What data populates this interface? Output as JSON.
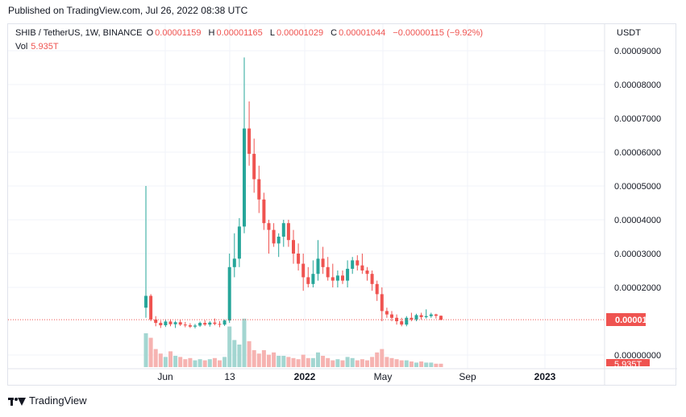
{
  "header": {
    "published": "Published on TradingView.com, Jul 26, 2022 08:38 UTC"
  },
  "legend": {
    "symbol": "SHIB / TetherUS, 1W, BINANCE",
    "o_label": "O",
    "o_value": "0.00001159",
    "h_label": "H",
    "h_value": "0.00001165",
    "l_label": "L",
    "l_value": "0.00001029",
    "c_label": "C",
    "c_value": "0.00001044",
    "change": "−0.00000115 (−9.92%)",
    "vol_label": "Vol",
    "vol_value": "5.935T"
  },
  "currency": "USDT",
  "footer": {
    "brand": "TradingView"
  },
  "colors": {
    "up": "#26a69a",
    "down": "#ef5350",
    "up_vol": "#a3d6d1",
    "down_vol": "#f6b3b1"
  },
  "chart_data": {
    "type": "candlestick",
    "y_ticks": [
      "0.00009000",
      "0.00008000",
      "0.00007000",
      "0.00006000",
      "0.00005000",
      "0.00004000",
      "0.00003000",
      "0.00002000",
      "0.00000000"
    ],
    "ylim": [
      0,
      9e-05
    ],
    "x_ticks": [
      "Jun",
      "13",
      "2022",
      "May",
      "Sep",
      "2023"
    ],
    "last_price": "0.00001044",
    "last_volume": "5.935T",
    "candles": [
      [
        1.4e-05,
        5e-05,
        1.1e-05,
        1.75e-05,
        3.0
      ],
      [
        1.75e-05,
        1.8e-05,
        1e-05,
        1.05e-05,
        2.6
      ],
      [
        1.05e-05,
        1.15e-05,
        8.5e-06,
        9.5e-06,
        1.6
      ],
      [
        9.5e-06,
        1.02e-05,
        8e-06,
        8.8e-06,
        1.2
      ],
      [
        8.8e-06,
        1.05e-05,
        8.3e-06,
        9.9e-06,
        0.9
      ],
      [
        9.9e-06,
        1.06e-05,
        8.5e-06,
        9.1e-06,
        1.4
      ],
      [
        9.1e-06,
        1.01e-05,
        8e-06,
        9.7e-06,
        1.0
      ],
      [
        9.7e-06,
        1.04e-05,
        8.6e-06,
        9e-06,
        0.9
      ],
      [
        9e-06,
        9.8e-06,
        8.2e-06,
        8.8e-06,
        0.7
      ],
      [
        8.8e-06,
        9.4e-06,
        8e-06,
        8.4e-06,
        0.8
      ],
      [
        8.4e-06,
        9.2e-06,
        7.9e-06,
        8.7e-06,
        0.6
      ],
      [
        8.7e-06,
        9.9e-06,
        8.3e-06,
        9.5e-06,
        0.7
      ],
      [
        9.5e-06,
        1.03e-05,
        8.6e-06,
        9e-06,
        0.6
      ],
      [
        9e-06,
        1e-05,
        8.4e-06,
        9.6e-06,
        0.7
      ],
      [
        9.6e-06,
        1.08e-05,
        8.8e-06,
        9.2e-06,
        0.8
      ],
      [
        9.2e-06,
        1e-05,
        8.2e-06,
        9e-06,
        0.6
      ],
      [
        9e-06,
        1.05e-05,
        8.6e-06,
        1.02e-05,
        0.9
      ],
      [
        1.02e-05,
        3e-05,
        9.5e-06,
        2.6e-05,
        3.6
      ],
      [
        2.6e-05,
        3.6e-05,
        2.3e-05,
        2.85e-05,
        2.4
      ],
      [
        2.85e-05,
        4.05e-05,
        2.6e-05,
        3.8e-05,
        2.0
      ],
      [
        3.8e-05,
        8.8e-05,
        3.6e-05,
        6.7e-05,
        4.3
      ],
      [
        6.7e-05,
        7.5e-05,
        5.6e-05,
        5.95e-05,
        2.3
      ],
      [
        5.95e-05,
        6.4e-05,
        4.8e-05,
        5.2e-05,
        1.5
      ],
      [
        5.2e-05,
        5.6e-05,
        4.2e-05,
        4.6e-05,
        1.2
      ],
      [
        4.6e-05,
        4.8e-05,
        3.7e-05,
        3.9e-05,
        1.5
      ],
      [
        3.9e-05,
        4e-05,
        3e-05,
        3.7e-05,
        1.1
      ],
      [
        3.7e-05,
        3.9e-05,
        3.2e-05,
        3.3e-05,
        1.3
      ],
      [
        3.3e-05,
        3.6e-05,
        2.9e-05,
        3.5e-05,
        1.0
      ],
      [
        3.5e-05,
        4e-05,
        3.2e-05,
        3.9e-05,
        1.0
      ],
      [
        3.9e-05,
        4e-05,
        3.2e-05,
        3.4e-05,
        0.9
      ],
      [
        3.4e-05,
        3.7e-05,
        2.7e-05,
        3e-05,
        0.8
      ],
      [
        3e-05,
        3.3e-05,
        2.5e-05,
        2.7e-05,
        0.7
      ],
      [
        2.7e-05,
        3e-05,
        1.9e-05,
        2.3e-05,
        1.1
      ],
      [
        2.3e-05,
        2.6e-05,
        2e-05,
        2.1e-05,
        0.8
      ],
      [
        2.1e-05,
        2.8e-05,
        2e-05,
        2.4e-05,
        0.8
      ],
      [
        2.4e-05,
        3.4e-05,
        2.2e-05,
        2.85e-05,
        1.3
      ],
      [
        2.85e-05,
        3.2e-05,
        2.4e-05,
        2.6e-05,
        1.0
      ],
      [
        2.6e-05,
        2.9e-05,
        2.2e-05,
        2.3e-05,
        0.8
      ],
      [
        2.3e-05,
        2.7e-05,
        2e-05,
        2.2e-05,
        0.6
      ],
      [
        2.2e-05,
        2.5e-05,
        2e-05,
        2.35e-05,
        0.7
      ],
      [
        2.35e-05,
        2.5e-05,
        2.1e-05,
        2.2e-05,
        0.6
      ],
      [
        2.2e-05,
        2.8e-05,
        2e-05,
        2.55e-05,
        0.9
      ],
      [
        2.55e-05,
        2.9e-05,
        2.4e-05,
        2.8e-05,
        0.8
      ],
      [
        2.8e-05,
        2.95e-05,
        2.5e-05,
        2.65e-05,
        0.6
      ],
      [
        2.65e-05,
        3e-05,
        2.4e-05,
        2.5e-05,
        0.7
      ],
      [
        2.5e-05,
        2.6e-05,
        2.2e-05,
        2.4e-05,
        0.6
      ],
      [
        2.4e-05,
        2.5e-05,
        1.9e-05,
        2.1e-05,
        0.9
      ],
      [
        2.1e-05,
        2.2e-05,
        1.6e-05,
        1.8e-05,
        1.3
      ],
      [
        1.8e-05,
        2e-05,
        1e-05,
        1.3e-05,
        1.6
      ],
      [
        1.3e-05,
        1.4e-05,
        1.1e-05,
        1.2e-05,
        0.9
      ],
      [
        1.2e-05,
        1.3e-05,
        1e-05,
        1.1e-05,
        0.8
      ],
      [
        1.1e-05,
        1.2e-05,
        9e-06,
        1e-05,
        0.7
      ],
      [
        1e-05,
        1.1e-05,
        8.5e-06,
        9e-06,
        0.6
      ],
      [
        9e-06,
        1.15e-05,
        8.5e-06,
        1.1e-05,
        0.6
      ],
      [
        1.1e-05,
        1.25e-05,
        1e-05,
        1.05e-05,
        0.5
      ],
      [
        1.05e-05,
        1.22e-05,
        1e-05,
        1.18e-05,
        0.4
      ],
      [
        1.18e-05,
        1.25e-05,
        1.05e-05,
        1.12e-05,
        0.5
      ],
      [
        1.12e-05,
        1.35e-05,
        1.08e-05,
        1.15e-05,
        0.4
      ],
      [
        1.15e-05,
        1.25e-05,
        1.1e-05,
        1.2e-05,
        0.4
      ],
      [
        1.2e-05,
        1.22e-05,
        1.08e-05,
        1.16e-05,
        0.3
      ],
      [
        1.16e-05,
        1.17e-05,
        1.03e-05,
        1.04e-05,
        0.3
      ]
    ]
  }
}
